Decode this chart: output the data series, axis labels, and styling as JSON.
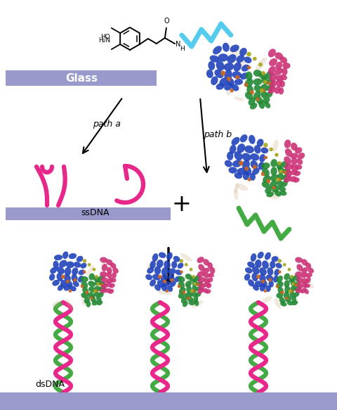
{
  "bg_color": "#ffffff",
  "glass_color": "#9999cc",
  "glass_label_color": "#ffffff",
  "pink_color": "#e8278a",
  "cyan_color": "#55ccee",
  "green_dna_color": "#44aa44",
  "arrow_color": "#222222",
  "path_a_text": "path a",
  "path_b_text": "path b",
  "ssDNA_text": "ssDNA",
  "dsDNA_text": "dsDNA",
  "glass_text": "Glass",
  "protein_blue": "#2244bb",
  "protein_green": "#228833",
  "protein_pink": "#cc3377",
  "protein_orange": "#cc6622",
  "protein_yellow": "#aaaa22",
  "protein_white": "#e8e8e8",
  "protein_tan": "#c8a87a"
}
